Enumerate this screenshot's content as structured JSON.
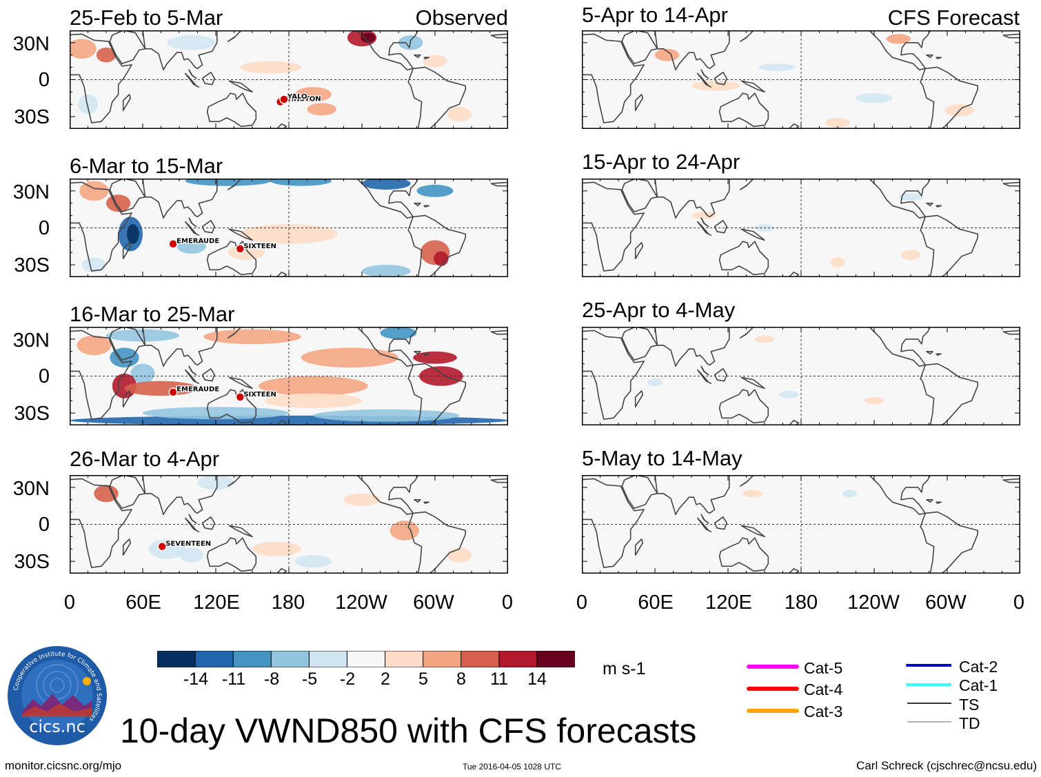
{
  "chart_data": {
    "type": "heatmap",
    "title": "10-day VWND850 with CFS forecasts",
    "variable": "VWND850",
    "units": "m s-1",
    "column_labels": [
      "Observed",
      "CFS Forecast"
    ],
    "lat_ticks": [
      "30N",
      "0",
      "30S"
    ],
    "lon_ticks": [
      "0",
      "60E",
      "120E",
      "180",
      "120W",
      "60W",
      "0"
    ],
    "colorbar": {
      "ticks": [
        "-14",
        "-11",
        "-8",
        "-5",
        "-2",
        "2",
        "5",
        "8",
        "11",
        "14"
      ],
      "colors": [
        "#053061",
        "#2166ac",
        "#4393c3",
        "#92c5de",
        "#d1e5f0",
        "#f7f7f7",
        "#fddbc7",
        "#f4a582",
        "#d6604d",
        "#b2182b",
        "#67001f"
      ]
    },
    "panels": [
      {
        "id": "obs1",
        "column": "Observed",
        "period": "25-Feb to 5-Mar",
        "storms": [
          {
            "name": "WINSTON",
            "lon": 173,
            "lat": -18
          },
          {
            "name": "YALO",
            "lon": 176,
            "lat": -16
          }
        ]
      },
      {
        "id": "obs2",
        "column": "Observed",
        "period": "6-Mar to 15-Mar",
        "storms": [
          {
            "name": "EMERAUDE",
            "lon": 85,
            "lat": -13
          },
          {
            "name": "SIXTEEN",
            "lon": 140,
            "lat": -17
          }
        ]
      },
      {
        "id": "obs3",
        "column": "Observed",
        "period": "16-Mar to 25-Mar",
        "storms": [
          {
            "name": "EMERAUDE",
            "lon": 85,
            "lat": -13
          },
          {
            "name": "SIXTEEN",
            "lon": 140,
            "lat": -17
          }
        ]
      },
      {
        "id": "obs4",
        "column": "Observed",
        "period": "26-Mar to 4-Apr",
        "storms": [
          {
            "name": "SEVENTEEN",
            "lon": 76,
            "lat": -18
          }
        ]
      },
      {
        "id": "fc1",
        "column": "CFS Forecast",
        "period": "5-Apr to 14-Apr",
        "storms": []
      },
      {
        "id": "fc2",
        "column": "CFS Forecast",
        "period": "15-Apr to 24-Apr",
        "storms": []
      },
      {
        "id": "fc3",
        "column": "CFS Forecast",
        "period": "25-Apr to 4-May",
        "storms": []
      },
      {
        "id": "fc4",
        "column": "CFS Forecast",
        "period": "5-May to 14-May",
        "storms": []
      }
    ],
    "storm_legend": [
      {
        "label": "Cat-5",
        "color": "#ff00ff"
      },
      {
        "label": "Cat-4",
        "color": "#ff0000"
      },
      {
        "label": "Cat-3",
        "color": "#ffa500"
      },
      {
        "label": "Cat-2",
        "color": "#0000cc"
      },
      {
        "label": "Cat-1",
        "color": "#00ffff"
      },
      {
        "label": "TS",
        "color": "#333333"
      },
      {
        "label": "TD",
        "color": "#888888"
      }
    ]
  },
  "logo": {
    "text": "cics.nc",
    "ring_text": "Cooperative Institute for Climate and Satellites"
  },
  "footer": {
    "url": "monitor.cicsnc.org/mjo",
    "timestamp": "Tue 2016-04-05 1028 UTC",
    "author": "Carl Schreck (cjschrec@ncsu.edu)"
  }
}
